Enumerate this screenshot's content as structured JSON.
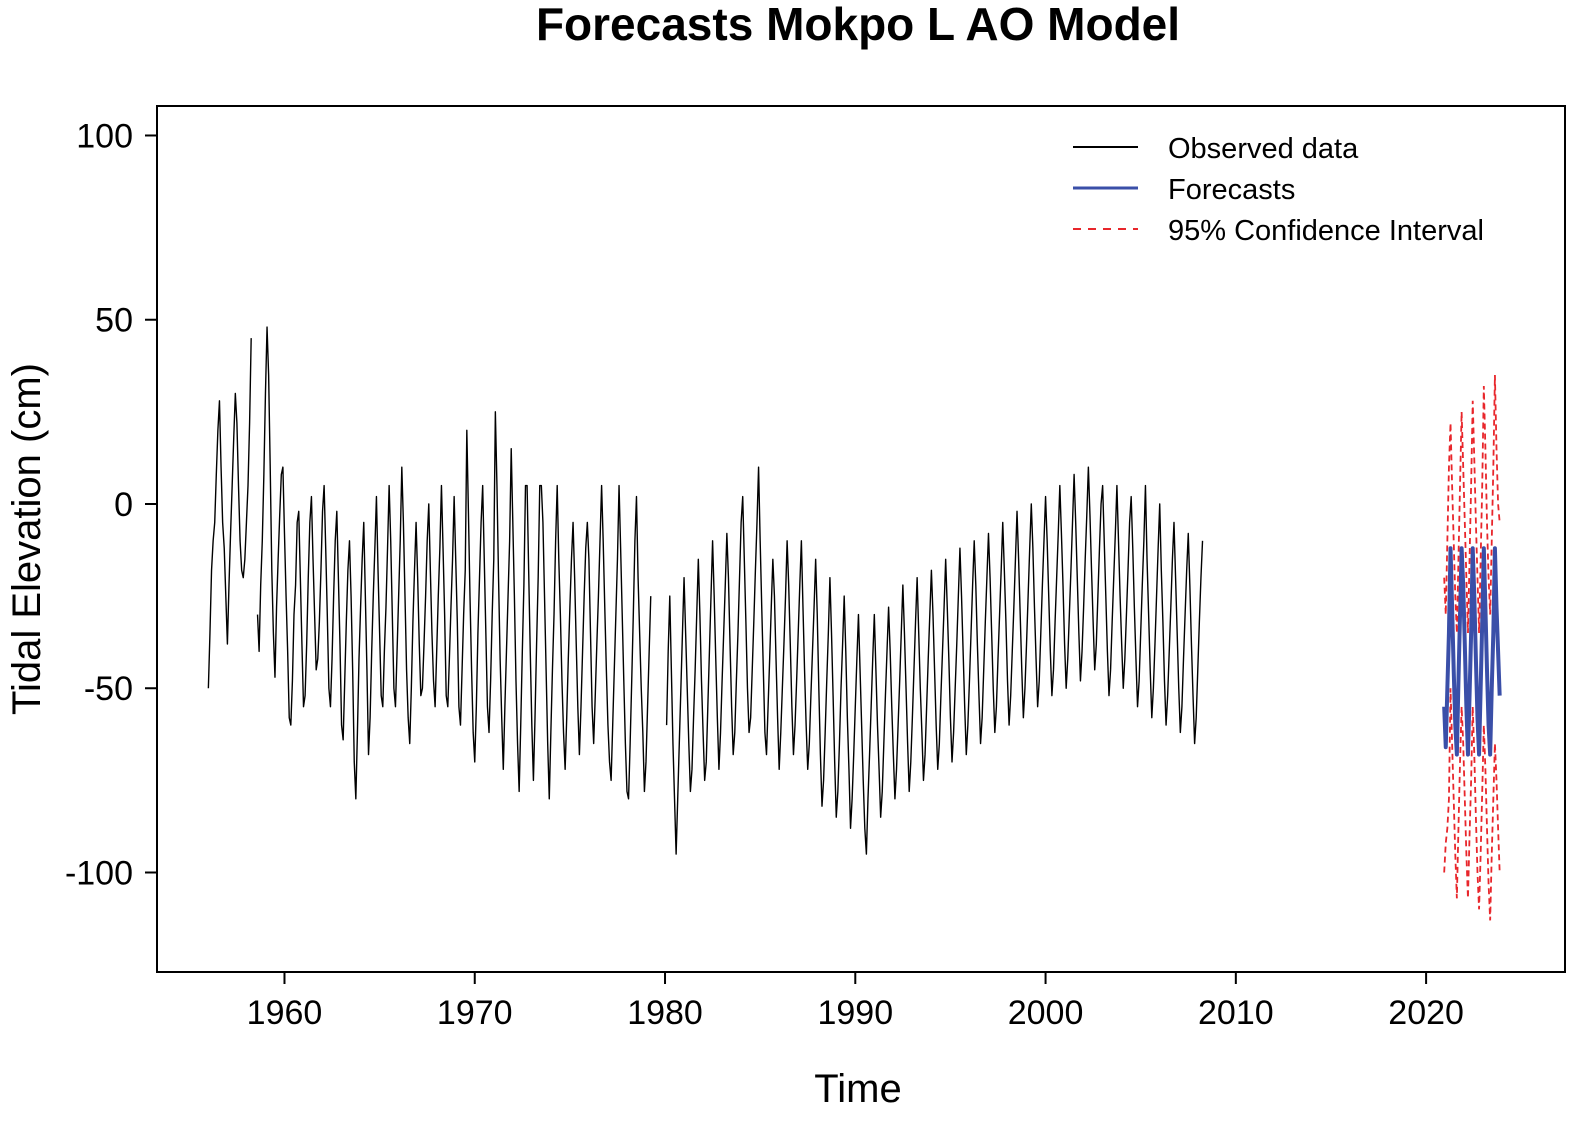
{
  "chart_data": {
    "type": "line",
    "title": "Forecasts Mokpo L AO Model",
    "xlabel": "Time",
    "ylabel": "Tidal Elevation (cm)",
    "xlim": [
      1953.3,
      2027.3
    ],
    "ylim": [
      -127,
      108
    ],
    "xticks": [
      1960,
      1970,
      1980,
      1990,
      2000,
      2010,
      2020
    ],
    "yticks": [
      -100,
      -50,
      0,
      50,
      100
    ],
    "xtick_labels": [
      "1960",
      "1970",
      "1980",
      "1990",
      "2000",
      "2010",
      "2020"
    ],
    "ytick_labels": [
      "-100",
      "-50",
      "0",
      "50",
      "100"
    ],
    "grid": false,
    "legend_position": "top-right",
    "series": [
      {
        "name": "Observed data",
        "color": "#000000",
        "style": "solid",
        "x_start": 1956.0,
        "x_step": 0.0833333,
        "gaps": [
          [
            1958.25,
            1958.5
          ],
          [
            1979.33,
            1980.0
          ]
        ],
        "values": [
          -50,
          -35,
          -18,
          -10,
          -5,
          8,
          20,
          28,
          10,
          -5,
          -12,
          -25,
          -38,
          -22,
          -8,
          5,
          18,
          30,
          22,
          5,
          -10,
          -18,
          -20,
          -15,
          -5,
          5,
          22,
          45,
          18,
          -2,
          -15,
          -30,
          -40,
          -22,
          -10,
          8,
          30,
          48,
          35,
          10,
          -18,
          -35,
          -47,
          -28,
          -15,
          -3,
          8,
          10,
          -8,
          -25,
          -40,
          -58,
          -60,
          -48,
          -30,
          -22,
          -5,
          -2,
          -20,
          -38,
          -55,
          -52,
          -38,
          -20,
          -5,
          2,
          -15,
          -30,
          -45,
          -42,
          -32,
          -18,
          -2,
          5,
          -12,
          -30,
          -50,
          -55,
          -42,
          -25,
          -10,
          -2,
          -20,
          -38,
          -60,
          -64,
          -48,
          -32,
          -18,
          -10,
          -25,
          -45,
          -70,
          -80,
          -62,
          -42,
          -28,
          -15,
          -5,
          -25,
          -45,
          -68,
          -58,
          -40,
          -25,
          -12,
          2,
          -18,
          -35,
          -52,
          -55,
          -40,
          -28,
          -12,
          5,
          -10,
          -30,
          -50,
          -55,
          -40,
          -25,
          -10,
          10,
          -5,
          -25,
          -45,
          -58,
          -65,
          -50,
          -32,
          -18,
          -5,
          -20,
          -38,
          -52,
          -50,
          -38,
          -25,
          -10,
          0,
          -18,
          -35,
          -48,
          -55,
          -40,
          -25,
          -12,
          5,
          -12,
          -30,
          -52,
          -55,
          -42,
          -28,
          -15,
          2,
          -15,
          -32,
          -55,
          -60,
          -45,
          -30,
          -18,
          20,
          -2,
          -25,
          -45,
          -62,
          -70,
          -55,
          -35,
          -20,
          -5,
          5,
          -15,
          -35,
          -55,
          -62,
          -48,
          -30,
          -15,
          25,
          5,
          -20,
          -42,
          -58,
          -72,
          -55,
          -40,
          -25,
          -10,
          15,
          -5,
          -25,
          -48,
          -65,
          -78,
          -60,
          -40,
          -22,
          5,
          5,
          -18,
          -40,
          -60,
          -75,
          -58,
          -38,
          -20,
          5,
          5,
          -5,
          -25,
          -45,
          -65,
          -80,
          -62,
          -45,
          -30,
          -10,
          5,
          -15,
          -30,
          -48,
          -62,
          -72,
          -58,
          -42,
          -28,
          -15,
          -5,
          -20,
          -38,
          -55,
          -68,
          -55,
          -40,
          -25,
          -12,
          -5,
          -15,
          -35,
          -55,
          -65,
          -52,
          -38,
          -25,
          -10,
          5,
          -10,
          -28,
          -45,
          -60,
          -70,
          -75,
          -60,
          -45,
          -30,
          -15,
          5,
          -12,
          -30,
          -48,
          -65,
          -78,
          -80,
          -65,
          -48,
          -30,
          -10,
          2,
          -20,
          -35,
          -50,
          -62,
          -78,
          -70,
          -55,
          -40,
          -25,
          -8,
          -22,
          -40,
          -55,
          -68,
          -90,
          -98,
          -100,
          -80,
          -60,
          -40,
          -25,
          -45,
          -65,
          -80,
          -95,
          -80,
          -65,
          -50,
          -35,
          -20,
          -35,
          -50,
          -65,
          -78,
          -72,
          -58,
          -45,
          -30,
          -15,
          -30,
          -48,
          -62,
          -75,
          -70,
          -55,
          -40,
          -25,
          -10,
          -25,
          -42,
          -58,
          -72,
          -62,
          -48,
          -35,
          -22,
          -8,
          -20,
          -38,
          -55,
          -68,
          -62,
          -48,
          -35,
          -20,
          -5,
          2,
          -15,
          -32,
          -50,
          -62,
          -58,
          -45,
          -32,
          -18,
          -5,
          10,
          -10,
          -28,
          -45,
          -62,
          -68,
          -55,
          -42,
          -28,
          -15,
          -25,
          -42,
          -58,
          -72,
          -62,
          -50,
          -38,
          -25,
          -10,
          -22,
          -38,
          -55,
          -68,
          -60,
          -48,
          -35,
          -22,
          -10,
          -28,
          -45,
          -60,
          -72,
          -65,
          -52,
          -40,
          -28,
          -15,
          -30,
          -50,
          -68,
          -82,
          -75,
          -62,
          -48,
          -35,
          -20,
          -35,
          -52,
          -70,
          -85,
          -78,
          -65,
          -50,
          -38,
          -25,
          -40,
          -58,
          -72,
          -88,
          -80,
          -68,
          -55,
          -42,
          -30,
          -45,
          -60,
          -75,
          -88,
          -95,
          -80,
          -68,
          -55,
          -42,
          -30,
          -45,
          -60,
          -72,
          -85,
          -78,
          -65,
          -52,
          -40,
          -28,
          -40,
          -55,
          -68,
          -80,
          -72,
          -60,
          -48,
          -35,
          -22,
          -35,
          -50,
          -65,
          -78,
          -70,
          -58,
          -45,
          -32,
          -20,
          -35,
          -50,
          -62,
          -75,
          -68,
          -55,
          -42,
          -30,
          -18,
          -30,
          -45,
          -60,
          -72,
          -65,
          -52,
          -40,
          -28,
          -15,
          -28,
          -42,
          -58,
          -70,
          -62,
          -50,
          -38,
          -25,
          -12,
          -25,
          -40,
          -55,
          -68,
          -60,
          -48,
          -35,
          -22,
          -10,
          -22,
          -38,
          -52,
          -65,
          -58,
          -45,
          -32,
          -20,
          -8,
          -20,
          -35,
          -50,
          -62,
          -55,
          -42,
          -30,
          -18,
          -5,
          -18,
          -32,
          -48,
          -60,
          -52,
          -40,
          -28,
          -15,
          -2,
          -15,
          -30,
          -45,
          -58,
          -50,
          -38,
          -25,
          -12,
          0,
          -12,
          -28,
          -42,
          -55,
          -48,
          -35,
          -22,
          -10,
          2,
          -10,
          -25,
          -40,
          -52,
          -45,
          -32,
          -20,
          -8,
          5,
          -8,
          -22,
          -38,
          -50,
          -42,
          -30,
          -18,
          -5,
          8,
          -5,
          -20,
          -35,
          -48,
          -40,
          -28,
          -15,
          -3,
          10,
          -3,
          -18,
          -32,
          -45,
          -38,
          -25,
          -12,
          0,
          5,
          -10,
          -25,
          -40,
          -52,
          -45,
          -32,
          -20,
          -8,
          5,
          -10,
          -25,
          -38,
          -50,
          -42,
          -30,
          -18,
          -5,
          2,
          -12,
          -28,
          -42,
          -55,
          -48,
          -35,
          -22,
          -10,
          5,
          -15,
          -30,
          -45,
          -58,
          -50,
          -38,
          -25,
          -12,
          0,
          -18,
          -32,
          -48,
          -60,
          -52,
          -40,
          -28,
          -15,
          -5,
          -20,
          -35,
          -50,
          -62,
          -55,
          -42,
          -30,
          -18,
          -8,
          -22,
          -38,
          -52,
          -65,
          -58,
          -45,
          -32,
          -20,
          -10
        ]
      },
      {
        "name": "Forecasts",
        "color": "#3a4fa8",
        "style": "solid",
        "x_start": 2020.95,
        "x_step": 0.0833333,
        "values": [
          -55,
          -66,
          -50,
          -35,
          -12,
          -28,
          -45,
          -60,
          -68,
          -48,
          -30,
          -12,
          -22,
          -38,
          -55,
          -68,
          -52,
          -35,
          -12,
          -25,
          -42,
          -58,
          -68,
          -50,
          -32,
          -12,
          -28,
          -45,
          -60,
          -68,
          -50,
          -35,
          -12,
          -28,
          -40,
          -52
        ]
      },
      {
        "name": "95% Confidence Interval",
        "color": "#e8262b",
        "style": "dashed",
        "x_start": 2020.95,
        "x_step": 0.0833333,
        "upper": [
          -20,
          -30,
          -10,
          10,
          22,
          5,
          -10,
          -25,
          -35,
          -15,
          5,
          25,
          10,
          -5,
          -20,
          -35,
          -15,
          5,
          28,
          12,
          -5,
          -20,
          -35,
          -15,
          5,
          32,
          15,
          -5,
          -20,
          -30,
          -10,
          10,
          35,
          15,
          0,
          -5
        ],
        "lower": [
          -100,
          -92,
          -88,
          -80,
          -50,
          -65,
          -80,
          -95,
          -107,
          -88,
          -70,
          -55,
          -65,
          -80,
          -95,
          -107,
          -90,
          -75,
          -55,
          -68,
          -85,
          -100,
          -110,
          -95,
          -78,
          -60,
          -72,
          -88,
          -103,
          -113,
          -95,
          -80,
          -65,
          -75,
          -88,
          -100
        ]
      }
    ]
  }
}
